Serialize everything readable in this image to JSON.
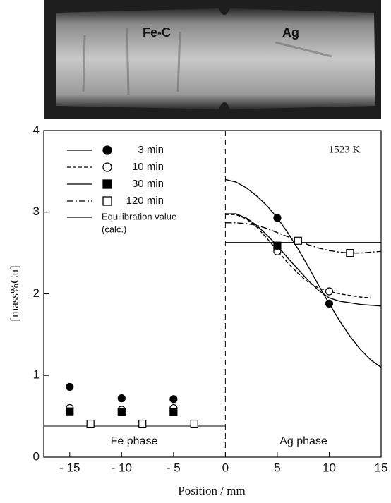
{
  "photo": {
    "labels": [
      "Fe-C",
      "Ag"
    ]
  },
  "chart_data": {
    "type": "scatter",
    "xlabel": "Position / mm",
    "ylabel": "[mass%Cu]",
    "xlim": [
      -17.5,
      15
    ],
    "ylim": [
      0,
      4
    ],
    "xticks": [
      {
        "value": -15,
        "label": "- 15"
      },
      {
        "value": -10,
        "label": "- 10"
      },
      {
        "value": -5,
        "label": "- 5"
      },
      0,
      5,
      10,
      15
    ],
    "yticks": [
      0,
      1,
      2,
      3,
      4
    ],
    "annotations": [
      "1523 K",
      "Fe phase",
      "Ag phase"
    ],
    "series": [
      {
        "name": "3 min",
        "marker": "circle",
        "filled": true,
        "line_style": "solid",
        "x": [
          -15,
          -10,
          -5,
          5,
          10
        ],
        "y": [
          0.86,
          0.72,
          0.71,
          2.93,
          1.88
        ],
        "curve": {
          "x": [
            0,
            1,
            2,
            3,
            4,
            5,
            6,
            7,
            8,
            9,
            10,
            11,
            12,
            13,
            14,
            15
          ],
          "y": [
            3.4,
            3.37,
            3.3,
            3.2,
            3.08,
            2.93,
            2.75,
            2.55,
            2.33,
            2.1,
            1.88,
            1.67,
            1.48,
            1.32,
            1.19,
            1.1
          ]
        }
      },
      {
        "name": "10 min",
        "marker": "circle",
        "filled": false,
        "line_style": "dashed",
        "x": [
          -15,
          -10,
          -5,
          5,
          10
        ],
        "y": [
          0.6,
          0.58,
          0.6,
          2.52,
          2.03
        ],
        "curve": {
          "x": [
            0,
            1,
            2,
            3,
            4,
            5,
            6,
            7,
            8,
            9,
            10,
            11,
            12,
            13,
            14
          ],
          "y": [
            2.97,
            2.97,
            2.92,
            2.82,
            2.68,
            2.53,
            2.38,
            2.25,
            2.14,
            2.07,
            2.03,
            2.0,
            1.98,
            1.96,
            1.95
          ]
        }
      },
      {
        "name": "30 min",
        "marker": "square",
        "filled": true,
        "line_style": "solid",
        "x": [
          -15,
          -10,
          -5,
          5
        ],
        "y": [
          0.56,
          0.55,
          0.55,
          2.59
        ],
        "curve": {
          "x": [
            0,
            1,
            2,
            3,
            4,
            5,
            6,
            7,
            8,
            9,
            10,
            11,
            12,
            13,
            14,
            15
          ],
          "y": [
            2.98,
            2.98,
            2.93,
            2.84,
            2.72,
            2.59,
            2.44,
            2.3,
            2.16,
            2.04,
            1.95,
            1.91,
            1.89,
            1.87,
            1.86,
            1.85
          ]
        }
      },
      {
        "name": "120 min",
        "marker": "square",
        "filled": false,
        "line_style": "dashdot",
        "x": [
          -13,
          -8,
          -3,
          7,
          12
        ],
        "y": [
          0.41,
          0.41,
          0.41,
          2.65,
          2.5
        ],
        "curve": {
          "x": [
            0,
            1,
            2,
            3,
            4,
            5,
            6,
            7,
            8,
            9,
            10,
            11,
            12,
            13,
            14,
            15
          ],
          "y": [
            2.87,
            2.87,
            2.86,
            2.84,
            2.8,
            2.75,
            2.7,
            2.65,
            2.6,
            2.56,
            2.53,
            2.51,
            2.5,
            2.5,
            2.51,
            2.52
          ]
        }
      }
    ],
    "equilibrium": {
      "name_lines": [
        "Equilibration value",
        "(calc.)"
      ],
      "fe": 0.38,
      "ag": 2.63
    }
  }
}
